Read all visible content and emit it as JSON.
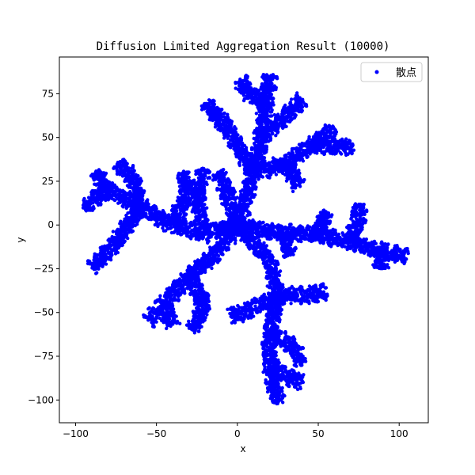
{
  "chart_data": {
    "type": "scatter",
    "title": "Diffusion Limited Aggregation Result (10000)",
    "xlabel": "x",
    "ylabel": "y",
    "xlim": [
      -110,
      118
    ],
    "ylim": [
      -113,
      96
    ],
    "xticks": [
      -100,
      -50,
      0,
      50,
      100
    ],
    "yticks": [
      -100,
      -75,
      -50,
      -25,
      0,
      25,
      50,
      75
    ],
    "grid": false,
    "legend": {
      "placement": "top-right",
      "entries": [
        "散点"
      ]
    },
    "marker_color": "#0000ff",
    "cluster": {
      "points": 10000,
      "seed_point": [
        0,
        0
      ],
      "arm_polylines": [
        [
          [
            0,
            0
          ],
          [
            5,
            15
          ],
          [
            10,
            30
          ],
          [
            15,
            50
          ],
          [
            18,
            70
          ],
          [
            20,
            86
          ]
        ],
        [
          [
            10,
            30
          ],
          [
            0,
            45
          ],
          [
            -8,
            58
          ],
          [
            -20,
            70
          ]
        ],
        [
          [
            15,
            50
          ],
          [
            30,
            62
          ],
          [
            40,
            72
          ]
        ],
        [
          [
            18,
            70
          ],
          [
            5,
            76
          ],
          [
            2,
            84
          ]
        ],
        [
          [
            10,
            30
          ],
          [
            30,
            35
          ],
          [
            45,
            45
          ],
          [
            60,
            55
          ]
        ],
        [
          [
            45,
            45
          ],
          [
            65,
            45
          ],
          [
            72,
            44
          ]
        ],
        [
          [
            30,
            35
          ],
          [
            38,
            22
          ]
        ],
        [
          [
            0,
            0
          ],
          [
            -20,
            -5
          ],
          [
            -40,
            0
          ],
          [
            -60,
            10
          ],
          [
            -80,
            20
          ],
          [
            -95,
            10
          ]
        ],
        [
          [
            -60,
            10
          ],
          [
            -65,
            28
          ],
          [
            -75,
            35
          ]
        ],
        [
          [
            -80,
            20
          ],
          [
            -88,
            30
          ]
        ],
        [
          [
            -40,
            0
          ],
          [
            -30,
            20
          ],
          [
            -35,
            30
          ]
        ],
        [
          [
            -20,
            -5
          ],
          [
            -25,
            15
          ],
          [
            -20,
            32
          ]
        ],
        [
          [
            -60,
            10
          ],
          [
            -75,
            -10
          ],
          [
            -90,
            -25
          ]
        ],
        [
          [
            0,
            0
          ],
          [
            -12,
            -15
          ],
          [
            -30,
            -30
          ],
          [
            -45,
            -45
          ],
          [
            -55,
            -55
          ]
        ],
        [
          [
            -30,
            -30
          ],
          [
            -20,
            -45
          ],
          [
            -28,
            -60
          ]
        ],
        [
          [
            -45,
            -45
          ],
          [
            -40,
            -58
          ]
        ],
        [
          [
            0,
            0
          ],
          [
            20,
            -20
          ],
          [
            25,
            -40
          ],
          [
            20,
            -60
          ],
          [
            20,
            -80
          ],
          [
            25,
            -102
          ]
        ],
        [
          [
            25,
            -40
          ],
          [
            45,
            -40
          ],
          [
            55,
            -38
          ]
        ],
        [
          [
            20,
            -60
          ],
          [
            35,
            -70
          ],
          [
            40,
            -80
          ]
        ],
        [
          [
            20,
            -80
          ],
          [
            30,
            -86
          ],
          [
            40,
            -90
          ]
        ],
        [
          [
            25,
            -40
          ],
          [
            5,
            -50
          ],
          [
            -5,
            -52
          ]
        ],
        [
          [
            0,
            0
          ],
          [
            30,
            -5
          ],
          [
            50,
            -5
          ],
          [
            70,
            -10
          ],
          [
            90,
            -15
          ],
          [
            105,
            -18
          ]
        ],
        [
          [
            70,
            -10
          ],
          [
            75,
            5
          ],
          [
            75,
            12
          ]
        ],
        [
          [
            50,
            -5
          ],
          [
            55,
            8
          ]
        ],
        [
          [
            90,
            -15
          ],
          [
            88,
            -25
          ]
        ],
        [
          [
            30,
            -5
          ],
          [
            32,
            -18
          ]
        ],
        [
          [
            0,
            0
          ],
          [
            -5,
            15
          ],
          [
            -12,
            30
          ]
        ]
      ]
    }
  }
}
